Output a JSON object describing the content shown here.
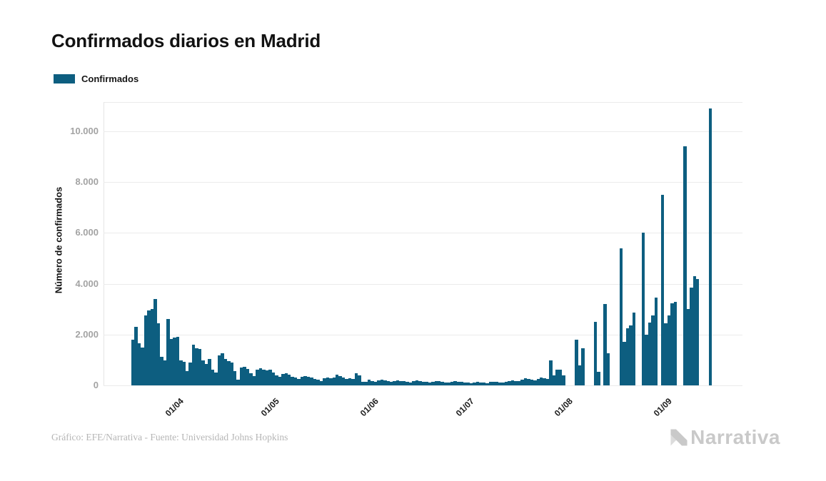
{
  "title": "Confirmados diarios en Madrid",
  "legend": {
    "label": "Confirmados"
  },
  "colors": {
    "bar": "#0d5e80",
    "gridline": "#ebebeb",
    "y_tick_text": "#a3a3a3",
    "x_tick_text": "#1c1c1c",
    "title_text": "#121212",
    "credit_text": "#b6b6b6",
    "logo_gray": "#c9c9c9",
    "logo_gray_light": "#dcdcdc"
  },
  "y_axis": {
    "label": "Número de confirmados",
    "ticks": [
      {
        "label": "0",
        "value": 0
      },
      {
        "label": "2.000",
        "value": 2000
      },
      {
        "label": "4.000",
        "value": 4000
      },
      {
        "label": "6.000",
        "value": 6000
      },
      {
        "label": "8.000",
        "value": 8000
      },
      {
        "label": "10.000",
        "value": 10000
      }
    ]
  },
  "x_axis": {
    "ticks": [
      {
        "label": "01/04",
        "index": 13
      },
      {
        "label": "01/05",
        "index": 43
      },
      {
        "label": "01/06",
        "index": 74
      },
      {
        "label": "01/07",
        "index": 104
      },
      {
        "label": "01/08",
        "index": 135
      },
      {
        "label": "01/09",
        "index": 166
      }
    ]
  },
  "footer": {
    "credit": "Gráfico: EFE/Narrativa - Fuente: Universidad Johns Hopkins",
    "logo_text": "Narrativa"
  },
  "chart_data": {
    "type": "bar",
    "title": "Confirmados diarios en Madrid",
    "series_name": "Confirmados",
    "xlabel": "",
    "ylabel": "Número de confirmados",
    "ylim": [
      0,
      11150
    ],
    "grid": true,
    "legend_position": "top-left",
    "x_tick_labels": [
      "01/04",
      "01/05",
      "01/06",
      "01/07",
      "01/08",
      "01/09"
    ],
    "x_range_approx": "19/03 - 16/09 (daily)",
    "values": [
      1800,
      2300,
      1650,
      1500,
      2750,
      2950,
      3000,
      3400,
      2450,
      1130,
      990,
      2600,
      1830,
      1890,
      1920,
      990,
      930,
      560,
      900,
      1600,
      1470,
      1440,
      990,
      850,
      1040,
      620,
      510,
      1180,
      1270,
      1040,
      960,
      900,
      560,
      230,
      700,
      730,
      650,
      480,
      370,
      620,
      680,
      620,
      580,
      620,
      520,
      400,
      340,
      450,
      480,
      420,
      350,
      300,
      260,
      350,
      380,
      330,
      300,
      260,
      220,
      180,
      280,
      300,
      270,
      300,
      420,
      380,
      300,
      250,
      280,
      260,
      480,
      400,
      150,
      130,
      240,
      180,
      150,
      200,
      220,
      190,
      160,
      130,
      170,
      200,
      180,
      160,
      140,
      120,
      160,
      190,
      170,
      150,
      130,
      110,
      150,
      180,
      160,
      140,
      120,
      100,
      140,
      170,
      150,
      130,
      120,
      100,
      90,
      110,
      130,
      120,
      100,
      90,
      130,
      150,
      140,
      120,
      100,
      140,
      180,
      200,
      180,
      160,
      230,
      280,
      260,
      230,
      200,
      260,
      300,
      280,
      250,
      990,
      390,
      620,
      620,
      400,
      0,
      0,
      0,
      1800,
      790,
      1460,
      0,
      0,
      0,
      2500,
      540,
      0,
      3200,
      1270,
      0,
      0,
      0,
      5400,
      1720,
      2260,
      2370,
      2880,
      0,
      0,
      6000,
      2000,
      2480,
      2740,
      3450,
      0,
      7500,
      2450,
      2740,
      3240,
      3300,
      0,
      0,
      9400,
      3000,
      3860,
      4290,
      4200,
      0,
      0,
      0,
      10900
    ]
  }
}
